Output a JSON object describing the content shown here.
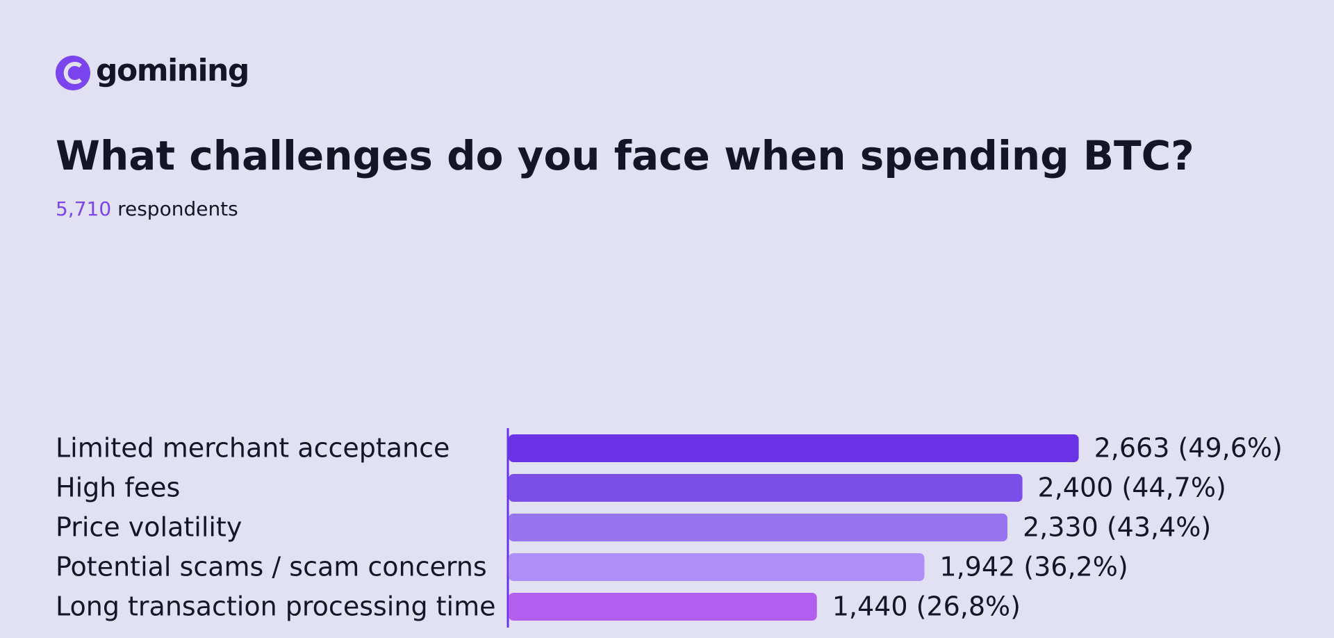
{
  "brand": "gomining",
  "chart_data": {
    "type": "bar",
    "orientation": "horizontal",
    "title": "What challenges do you face when spending BTC?",
    "subtitle": {
      "count": "5,710",
      "text": "respondents"
    },
    "categories": [
      "Limited merchant acceptance",
      "High fees",
      "Price volatility",
      "Potential scams / scam concerns",
      "Long transaction processing time"
    ],
    "values": [
      2663,
      2400,
      2330,
      1942,
      1440
    ],
    "value_labels": [
      "2,663 (49,6%)",
      "2,400 (44,7%)",
      "2,330 (43,4%)",
      "1,942 (36,2%)",
      "1,440 (26,8%)"
    ],
    "colors": [
      "#6a33e8",
      "#7b4eea",
      "#9874f0",
      "#ae8ff7",
      "#b25ff0"
    ],
    "xlim": [
      0,
      2700
    ]
  }
}
